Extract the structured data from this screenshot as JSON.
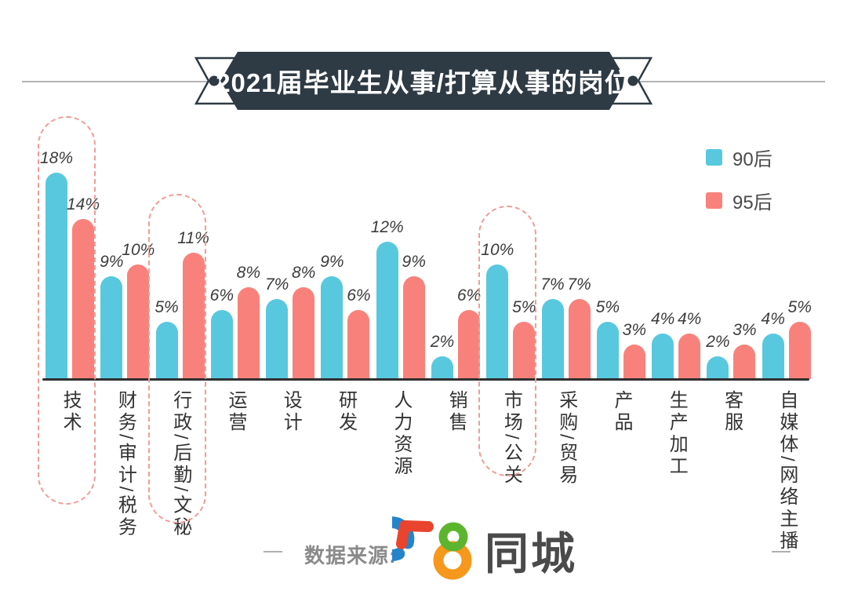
{
  "header": {
    "title": "2021届毕业生从事/打算从事的岗位"
  },
  "chart_data": {
    "type": "bar",
    "title": "2021届毕业生从事/打算从事的岗位",
    "categories": [
      "技术",
      "财务/审计/税务",
      "行政/后勤/文秘",
      "运营",
      "设计",
      "研发",
      "人力资源",
      "销售",
      "市场/公关",
      "采购/贸易",
      "产品",
      "生产加工",
      "客服",
      "自媒体/网络主播"
    ],
    "series": [
      {
        "name": "90后",
        "color": "#58C8DF",
        "values": [
          18,
          9,
          5,
          6,
          7,
          9,
          12,
          2,
          10,
          7,
          5,
          4,
          2,
          4
        ]
      },
      {
        "name": "95后",
        "color": "#F8827B",
        "values": [
          14,
          10,
          11,
          8,
          8,
          6,
          9,
          6,
          5,
          7,
          3,
          4,
          3,
          5
        ]
      }
    ],
    "unit": "%",
    "ylim": [
      0,
      20
    ],
    "grid": false,
    "value_labels": true,
    "legend_position": "top-right",
    "highlight_color": "#F29B95",
    "highlighted_categories": [
      "技术",
      "行政/后勤/文秘",
      "市场/公关"
    ]
  },
  "footer": {
    "source_label": "数据来源:",
    "brand": "58同城",
    "brand_suffix": "同城",
    "brand_colors": {
      "five_top": "#E8442E",
      "five_bottom": "#2484CA",
      "eight_top": "#5CB52E",
      "eight_bottom": "#F6981C",
      "text": "#4A4A4A"
    }
  }
}
